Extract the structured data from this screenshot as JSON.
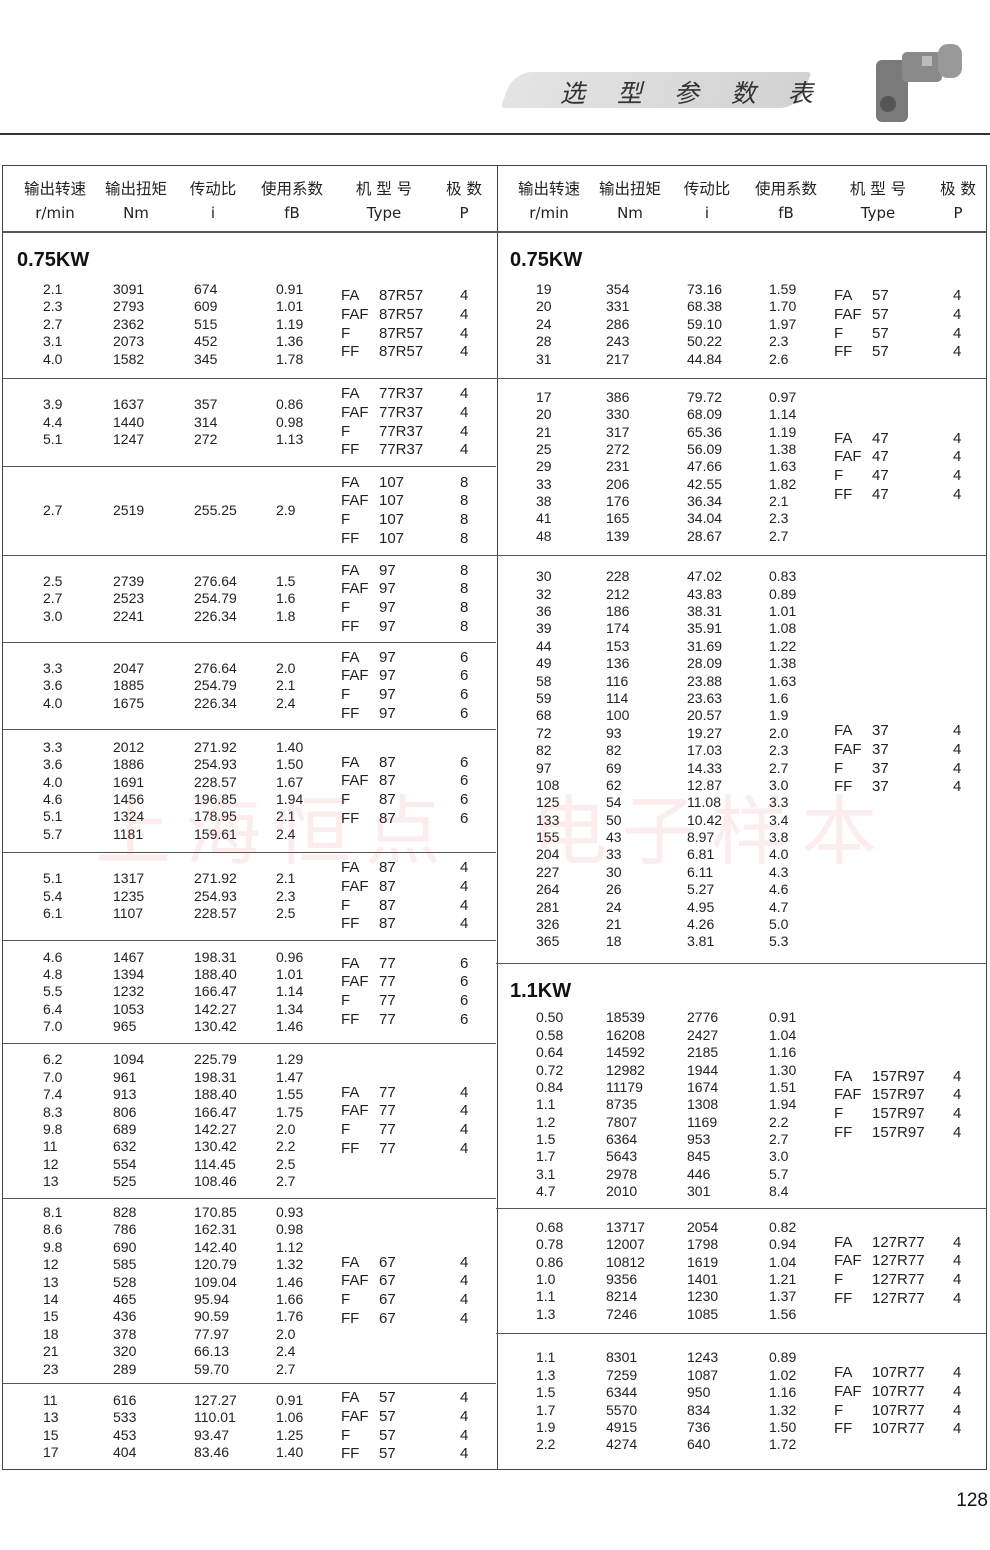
{
  "header": {
    "title": "选 型 参 数 表",
    "watermark": "上海恒点  电子样本"
  },
  "columns": [
    {
      "cn": "输出转速",
      "en": "r/min"
    },
    {
      "cn": "输出扭矩",
      "en": "Nm"
    },
    {
      "cn": "传动比",
      "en": "i"
    },
    {
      "cn": "使用系数",
      "en": "fB"
    },
    {
      "cn": "机 型 号",
      "en": "Type"
    },
    {
      "cn": "极  数",
      "en": "P"
    }
  ],
  "left": [
    {
      "label": "0.75KW",
      "rows": [
        [
          "2.1",
          "3091",
          "674",
          "0.91"
        ],
        [
          "2.3",
          "2793",
          "609",
          "1.01"
        ],
        [
          "2.7",
          "2362",
          "515",
          "1.19"
        ],
        [
          "3.1",
          "2073",
          "452",
          "1.36"
        ],
        [
          "4.0",
          "1582",
          "345",
          "1.78"
        ]
      ],
      "model": "87R57",
      "poles": "4"
    },
    {
      "rows": [
        [
          "3.9",
          "1637",
          "357",
          "0.86"
        ],
        [
          "4.4",
          "1440",
          "314",
          "0.98"
        ],
        [
          "5.1",
          "1247",
          "272",
          "1.13"
        ]
      ],
      "model": "77R37",
      "poles": "4"
    },
    {
      "rows": [
        [
          "2.7",
          "2519",
          "255.25",
          "2.9"
        ]
      ],
      "model": "107",
      "poles": "8"
    },
    {
      "rows": [
        [
          "2.5",
          "2739",
          "276.64",
          "1.5"
        ],
        [
          "2.7",
          "2523",
          "254.79",
          "1.6"
        ],
        [
          "3.0",
          "2241",
          "226.34",
          "1.8"
        ]
      ],
      "model": "97",
      "poles": "8"
    },
    {
      "rows": [
        [
          "3.3",
          "2047",
          "276.64",
          "2.0"
        ],
        [
          "3.6",
          "1885",
          "254.79",
          "2.1"
        ],
        [
          "4.0",
          "1675",
          "226.34",
          "2.4"
        ]
      ],
      "model": "97",
      "poles": "6"
    },
    {
      "rows": [
        [
          "3.3",
          "2012",
          "271.92",
          "1.40"
        ],
        [
          "3.6",
          "1886",
          "254.93",
          "1.50"
        ],
        [
          "4.0",
          "1691",
          "228.57",
          "1.67"
        ],
        [
          "4.6",
          "1456",
          "196.85",
          "1.94"
        ],
        [
          "5.1",
          "1324",
          "178.95",
          "2.1"
        ],
        [
          "5.7",
          "1181",
          "159.61",
          "2.4"
        ]
      ],
      "model": "87",
      "poles": "6"
    },
    {
      "rows": [
        [
          "5.1",
          "1317",
          "271.92",
          "2.1"
        ],
        [
          "5.4",
          "1235",
          "254.93",
          "2.3"
        ],
        [
          "6.1",
          "1107",
          "228.57",
          "2.5"
        ]
      ],
      "model": "87",
      "poles": "4"
    },
    {
      "rows": [
        [
          "4.6",
          "1467",
          "198.31",
          "0.96"
        ],
        [
          "4.8",
          "1394",
          "188.40",
          "1.01"
        ],
        [
          "5.5",
          "1232",
          "166.47",
          "1.14"
        ],
        [
          "6.4",
          "1053",
          "142.27",
          "1.34"
        ],
        [
          "7.0",
          "965",
          "130.42",
          "1.46"
        ]
      ],
      "model": "77",
      "poles": "6"
    },
    {
      "rows": [
        [
          "6.2",
          "1094",
          "225.79",
          "1.29"
        ],
        [
          "7.0",
          "961",
          "198.31",
          "1.47"
        ],
        [
          "7.4",
          "913",
          "188.40",
          "1.55"
        ],
        [
          "8.3",
          "806",
          "166.47",
          "1.75"
        ],
        [
          "9.8",
          "689",
          "142.27",
          "2.0"
        ],
        [
          "11",
          "632",
          "130.42",
          "2.2"
        ],
        [
          "12",
          "554",
          "114.45",
          "2.5"
        ],
        [
          "13",
          "525",
          "108.46",
          "2.7"
        ]
      ],
      "model": "77",
      "poles": "4"
    },
    {
      "rows": [
        [
          "8.1",
          "828",
          "170.85",
          "0.93"
        ],
        [
          "8.6",
          "786",
          "162.31",
          "0.98"
        ],
        [
          "9.8",
          "690",
          "142.40",
          "1.12"
        ],
        [
          "12",
          "585",
          "120.79",
          "1.32"
        ],
        [
          "13",
          "528",
          "109.04",
          "1.46"
        ],
        [
          "14",
          "465",
          "95.94",
          "1.66"
        ],
        [
          "15",
          "436",
          "90.59",
          "1.76"
        ],
        [
          "18",
          "378",
          "77.97",
          "2.0"
        ],
        [
          "21",
          "320",
          "66.13",
          "2.4"
        ],
        [
          "23",
          "289",
          "59.70",
          "2.7"
        ]
      ],
      "model": "67",
      "poles": "4"
    },
    {
      "rows": [
        [
          "11",
          "616",
          "127.27",
          "0.91"
        ],
        [
          "13",
          "533",
          "110.01",
          "1.06"
        ],
        [
          "15",
          "453",
          "93.47",
          "1.25"
        ],
        [
          "17",
          "404",
          "83.46",
          "1.40"
        ]
      ],
      "model": "57",
      "poles": "4"
    }
  ],
  "right": [
    {
      "label": "0.75KW",
      "rows": [
        [
          "19",
          "354",
          "73.16",
          "1.59"
        ],
        [
          "20",
          "331",
          "68.38",
          "1.70"
        ],
        [
          "24",
          "286",
          "59.10",
          "1.97"
        ],
        [
          "28",
          "243",
          "50.22",
          "2.3"
        ],
        [
          "31",
          "217",
          "44.84",
          "2.6"
        ]
      ],
      "model": "57",
      "poles": "4"
    },
    {
      "rows": [
        [
          "17",
          "386",
          "79.72",
          "0.97"
        ],
        [
          "20",
          "330",
          "68.09",
          "1.14"
        ],
        [
          "21",
          "317",
          "65.36",
          "1.19"
        ],
        [
          "25",
          "272",
          "56.09",
          "1.38"
        ],
        [
          "29",
          "231",
          "47.66",
          "1.63"
        ],
        [
          "33",
          "206",
          "42.55",
          "1.82"
        ],
        [
          "38",
          "176",
          "36.34",
          "2.1"
        ],
        [
          "41",
          "165",
          "34.04",
          "2.3"
        ],
        [
          "48",
          "139",
          "28.67",
          "2.7"
        ]
      ],
      "model": "47",
      "poles": "4"
    },
    {
      "rows": [
        [
          "30",
          "228",
          "47.02",
          "0.83"
        ],
        [
          "32",
          "212",
          "43.83",
          "0.89"
        ],
        [
          "36",
          "186",
          "38.31",
          "1.01"
        ],
        [
          "39",
          "174",
          "35.91",
          "1.08"
        ],
        [
          "44",
          "153",
          "31.69",
          "1.22"
        ],
        [
          "49",
          "136",
          "28.09",
          "1.38"
        ],
        [
          "58",
          "116",
          "23.88",
          "1.63"
        ],
        [
          "59",
          "114",
          "23.63",
          "1.6"
        ],
        [
          "68",
          "100",
          "20.57",
          "1.9"
        ],
        [
          "72",
          "93",
          "19.27",
          "2.0"
        ],
        [
          "82",
          "82",
          "17.03",
          "2.3"
        ],
        [
          "97",
          "69",
          "14.33",
          "2.7"
        ],
        [
          "108",
          "62",
          "12.87",
          "3.0"
        ],
        [
          "125",
          "54",
          "11.08",
          "3.3"
        ],
        [
          "133",
          "50",
          "10.42",
          "3.4"
        ],
        [
          "155",
          "43",
          "8.97",
          "3.8"
        ],
        [
          "204",
          "33",
          "6.81",
          "4.0"
        ],
        [
          "227",
          "30",
          "6.11",
          "4.3"
        ],
        [
          "264",
          "26",
          "5.27",
          "4.6"
        ],
        [
          "281",
          "24",
          "4.95",
          "4.7"
        ],
        [
          "326",
          "21",
          "4.26",
          "5.0"
        ],
        [
          "365",
          "18",
          "3.81",
          "5.3"
        ]
      ],
      "model": "37",
      "poles": "4"
    },
    {
      "label": "1.1KW",
      "rows": [
        [
          "0.50",
          "18539",
          "2776",
          "0.91"
        ],
        [
          "0.58",
          "16208",
          "2427",
          "1.04"
        ],
        [
          "0.64",
          "14592",
          "2185",
          "1.16"
        ],
        [
          "0.72",
          "12982",
          "1944",
          "1.30"
        ],
        [
          "0.84",
          "11179",
          "1674",
          "1.51"
        ],
        [
          "1.1",
          "8735",
          "1308",
          "1.94"
        ],
        [
          "1.2",
          "7807",
          "1169",
          "2.2"
        ],
        [
          "1.5",
          "6364",
          "953",
          "2.7"
        ],
        [
          "1.7",
          "5643",
          "845",
          "3.0"
        ],
        [
          "3.1",
          "2978",
          "446",
          "5.7"
        ],
        [
          "4.7",
          "2010",
          "301",
          "8.4"
        ]
      ],
      "model": "157R97",
      "poles": "4"
    },
    {
      "rows": [
        [
          "0.68",
          "13717",
          "2054",
          "0.82"
        ],
        [
          "0.78",
          "12007",
          "1798",
          "0.94"
        ],
        [
          "0.86",
          "10812",
          "1619",
          "1.04"
        ],
        [
          "1.0",
          "9356",
          "1401",
          "1.21"
        ],
        [
          "1.1",
          "8214",
          "1230",
          "1.37"
        ],
        [
          "1.3",
          "7246",
          "1085",
          "1.56"
        ]
      ],
      "model": "127R77",
      "poles": "4"
    },
    {
      "rows": [
        [
          "1.1",
          "8301",
          "1243",
          "0.89"
        ],
        [
          "1.3",
          "7259",
          "1087",
          "1.02"
        ],
        [
          "1.5",
          "6344",
          "950",
          "1.16"
        ],
        [
          "1.7",
          "5570",
          "834",
          "1.32"
        ],
        [
          "1.9",
          "4915",
          "736",
          "1.50"
        ],
        [
          "2.2",
          "4274",
          "640",
          "1.72"
        ]
      ],
      "model": "107R77",
      "poles": "4"
    }
  ],
  "mount_prefixes": [
    "FA",
    "FAF",
    "F",
    "FF"
  ],
  "page_number": "128"
}
